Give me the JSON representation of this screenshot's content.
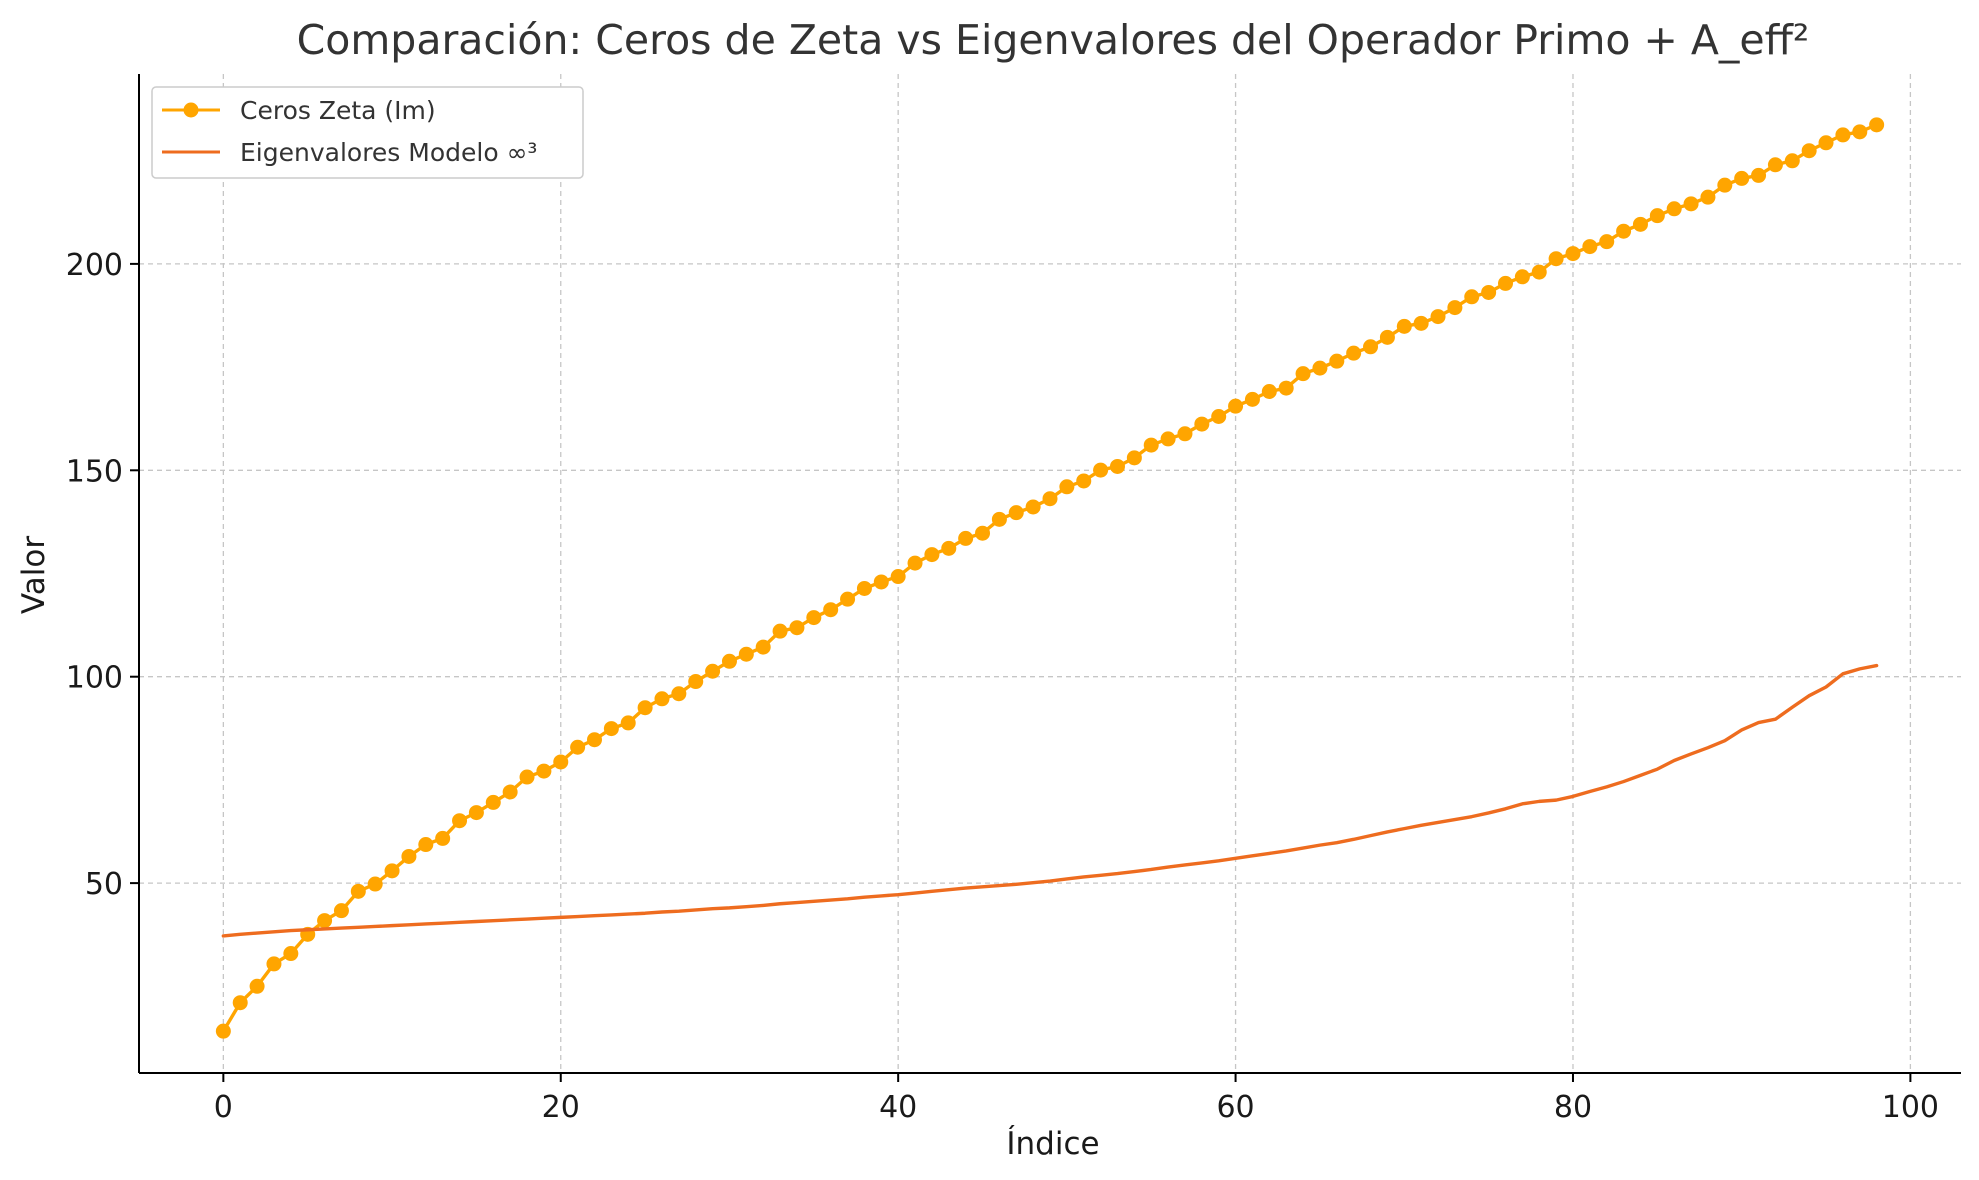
{
  "chart_data": {
    "type": "line",
    "title": "Comparación: Ceros de Zeta vs Eigenvalores del Operador Primo + A_eff²",
    "xlabel": "Índice",
    "ylabel": "Valor",
    "xlim": [
      -5,
      103
    ],
    "ylim": [
      4,
      246
    ],
    "xticks": [
      0,
      20,
      40,
      60,
      80,
      100
    ],
    "yticks": [
      50,
      100,
      150,
      200
    ],
    "xtick_labels": [
      "0",
      "20",
      "40",
      "60",
      "80",
      "100"
    ],
    "ytick_labels": [
      "50",
      "100",
      "150",
      "200"
    ],
    "grid": true,
    "legend_position": "top-left",
    "x": [
      0,
      1,
      2,
      3,
      4,
      5,
      6,
      7,
      8,
      9,
      10,
      11,
      12,
      13,
      14,
      15,
      16,
      17,
      18,
      19,
      20,
      21,
      22,
      23,
      24,
      25,
      26,
      27,
      28,
      29,
      30,
      31,
      32,
      33,
      34,
      35,
      36,
      37,
      38,
      39,
      40,
      41,
      42,
      43,
      44,
      45,
      46,
      47,
      48,
      49,
      50,
      51,
      52,
      53,
      54,
      55,
      56,
      57,
      58,
      59,
      60,
      61,
      62,
      63,
      64,
      65,
      66,
      67,
      68,
      69,
      70,
      71,
      72,
      73,
      74,
      75,
      76,
      77,
      78,
      79,
      80,
      81,
      82,
      83,
      84,
      85,
      86,
      87,
      88,
      89,
      90,
      91,
      92,
      93,
      94,
      95,
      96,
      97,
      98
    ],
    "series": [
      {
        "name": "Ceros Zeta (Im)",
        "color": "#ffa500",
        "marker": "circle",
        "values": [
          14.13,
          21.02,
          25.01,
          30.42,
          32.94,
          37.59,
          40.92,
          43.33,
          48.01,
          49.77,
          52.97,
          56.45,
          59.35,
          60.83,
          65.11,
          67.08,
          69.55,
          72.07,
          75.7,
          77.14,
          79.34,
          82.91,
          84.74,
          87.43,
          88.81,
          92.49,
          94.65,
          95.87,
          98.83,
          101.32,
          103.73,
          105.45,
          107.17,
          111.03,
          111.87,
          114.32,
          116.23,
          118.79,
          121.37,
          122.95,
          124.26,
          127.52,
          129.58,
          131.09,
          133.5,
          134.76,
          138.12,
          139.74,
          141.12,
          143.11,
          146.0,
          147.42,
          150.05,
          150.93,
          153.02,
          156.11,
          157.6,
          158.85,
          161.19,
          163.03,
          165.54,
          167.18,
          169.09,
          169.91,
          173.41,
          174.75,
          176.44,
          178.38,
          179.92,
          182.21,
          184.87,
          185.6,
          187.23,
          189.42,
          192.03,
          193.08,
          195.27,
          196.88,
          198.02,
          201.26,
          202.49,
          204.19,
          205.39,
          207.91,
          209.58,
          211.69,
          213.35,
          214.55,
          216.17,
          219.07,
          220.71,
          221.43,
          224.01,
          224.98,
          227.42,
          229.34,
          231.25,
          231.99,
          233.69
        ]
      },
      {
        "name": "Eigenvalores Modelo ∞³",
        "color": "#ee6c1f",
        "marker": "none",
        "values": [
          37.2,
          37.6,
          37.9,
          38.2,
          38.5,
          38.7,
          38.9,
          39.1,
          39.3,
          39.5,
          39.7,
          39.9,
          40.1,
          40.3,
          40.5,
          40.7,
          40.9,
          41.1,
          41.3,
          41.5,
          41.7,
          41.9,
          42.1,
          42.3,
          42.5,
          42.7,
          43.0,
          43.2,
          43.5,
          43.8,
          44.0,
          44.3,
          44.6,
          45.0,
          45.3,
          45.6,
          45.9,
          46.2,
          46.6,
          46.9,
          47.2,
          47.6,
          48.0,
          48.4,
          48.8,
          49.1,
          49.4,
          49.7,
          50.1,
          50.5,
          51.0,
          51.5,
          51.9,
          52.3,
          52.8,
          53.3,
          53.9,
          54.4,
          54.9,
          55.4,
          56.0,
          56.6,
          57.2,
          57.8,
          58.5,
          59.2,
          59.8,
          60.6,
          61.5,
          62.4,
          63.2,
          64.0,
          64.7,
          65.4,
          66.1,
          67.0,
          68.0,
          69.2,
          69.8,
          70.1,
          71.0,
          72.2,
          73.3,
          74.6,
          76.1,
          77.6,
          79.7,
          81.3,
          82.8,
          84.5,
          87.1,
          88.9,
          89.7,
          92.6,
          95.4,
          97.5,
          100.7,
          101.9,
          102.7
        ]
      }
    ]
  }
}
